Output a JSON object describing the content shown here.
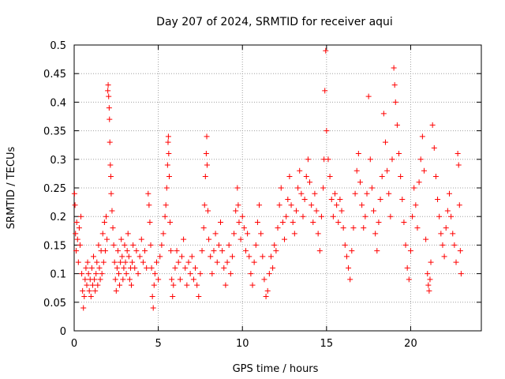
{
  "chart_data": {
    "type": "scatter",
    "title": "Day 207 of 2024, SRMTID for receiver aqui",
    "xlabel": "GPS time / hours",
    "ylabel": "SRMTID / TECUs",
    "xlim": [
      0,
      24.2
    ],
    "ylim": [
      0,
      0.5
    ],
    "x_ticks": [
      0,
      5,
      10,
      15,
      20
    ],
    "x_tick_labels": [
      "0",
      "5",
      "10",
      "15",
      "20"
    ],
    "y_ticks": [
      0,
      0.05,
      0.1,
      0.15,
      0.2,
      0.25,
      0.3,
      0.35,
      0.4,
      0.45,
      0.5
    ],
    "y_tick_labels": [
      "0",
      "0.05",
      "0.1",
      "0.15",
      "0.2",
      "0.25",
      "0.3",
      "0.35",
      "0.4",
      "0.45",
      "0.5"
    ],
    "grid": true,
    "marker": "+",
    "color": "#ff0000",
    "series": [
      {
        "name": "SRMTID",
        "points": [
          [
            0.02,
            0.24
          ],
          [
            0.05,
            0.22
          ],
          [
            0.08,
            0.17
          ],
          [
            0.12,
            0.14
          ],
          [
            0.15,
            0.19
          ],
          [
            0.2,
            0.16
          ],
          [
            0.25,
            0.12
          ],
          [
            0.3,
            0.18
          ],
          [
            0.35,
            0.15
          ],
          [
            0.4,
            0.2
          ],
          [
            0.45,
            0.1
          ],
          [
            0.5,
            0.07
          ],
          [
            0.55,
            0.04
          ],
          [
            0.6,
            0.06
          ],
          [
            0.65,
            0.09
          ],
          [
            0.7,
            0.11
          ],
          [
            0.75,
            0.08
          ],
          [
            0.8,
            0.12
          ],
          [
            0.85,
            0.1
          ],
          [
            0.9,
            0.07
          ],
          [
            0.95,
            0.09
          ],
          [
            1.0,
            0.06
          ],
          [
            1.05,
            0.11
          ],
          [
            1.1,
            0.08
          ],
          [
            1.15,
            0.13
          ],
          [
            1.2,
            0.09
          ],
          [
            1.25,
            0.07
          ],
          [
            1.3,
            0.1
          ],
          [
            1.35,
            0.12
          ],
          [
            1.4,
            0.08
          ],
          [
            1.45,
            0.15
          ],
          [
            1.5,
            0.11
          ],
          [
            1.55,
            0.09
          ],
          [
            1.6,
            0.14
          ],
          [
            1.65,
            0.1
          ],
          [
            1.7,
            0.17
          ],
          [
            1.75,
            0.12
          ],
          [
            1.8,
            0.19
          ],
          [
            1.85,
            0.14
          ],
          [
            1.9,
            0.2
          ],
          [
            1.95,
            0.16
          ],
          [
            2.0,
            0.42
          ],
          [
            2.02,
            0.43
          ],
          [
            2.05,
            0.41
          ],
          [
            2.08,
            0.39
          ],
          [
            2.1,
            0.37
          ],
          [
            2.12,
            0.33
          ],
          [
            2.15,
            0.29
          ],
          [
            2.18,
            0.27
          ],
          [
            2.2,
            0.24
          ],
          [
            2.25,
            0.21
          ],
          [
            2.3,
            0.18
          ],
          [
            2.35,
            0.15
          ],
          [
            2.4,
            0.12
          ],
          [
            2.45,
            0.09
          ],
          [
            2.5,
            0.07
          ],
          [
            2.55,
            0.11
          ],
          [
            2.6,
            0.14
          ],
          [
            2.65,
            0.1
          ],
          [
            2.7,
            0.08
          ],
          [
            2.75,
            0.12
          ],
          [
            2.8,
            0.16
          ],
          [
            2.85,
            0.13
          ],
          [
            2.9,
            0.09
          ],
          [
            2.95,
            0.11
          ],
          [
            3.0,
            0.15
          ],
          [
            3.05,
            0.12
          ],
          [
            3.1,
            0.1
          ],
          [
            3.15,
            0.14
          ],
          [
            3.2,
            0.17
          ],
          [
            3.25,
            0.13
          ],
          [
            3.3,
            0.09
          ],
          [
            3.35,
            0.11
          ],
          [
            3.4,
            0.08
          ],
          [
            3.45,
            0.12
          ],
          [
            3.5,
            0.15
          ],
          [
            3.6,
            0.11
          ],
          [
            3.7,
            0.14
          ],
          [
            3.8,
            0.1
          ],
          [
            3.9,
            0.13
          ],
          [
            4.0,
            0.16
          ],
          [
            4.1,
            0.12
          ],
          [
            4.2,
            0.14
          ],
          [
            4.3,
            0.11
          ],
          [
            4.4,
            0.24
          ],
          [
            4.45,
            0.22
          ],
          [
            4.5,
            0.19
          ],
          [
            4.55,
            0.15
          ],
          [
            4.6,
            0.11
          ],
          [
            4.65,
            0.06
          ],
          [
            4.7,
            0.04
          ],
          [
            4.75,
            0.08
          ],
          [
            4.8,
            0.1
          ],
          [
            4.9,
            0.12
          ],
          [
            5.0,
            0.09
          ],
          [
            5.1,
            0.13
          ],
          [
            5.2,
            0.15
          ],
          [
            5.3,
            0.17
          ],
          [
            5.4,
            0.2
          ],
          [
            5.45,
            0.22
          ],
          [
            5.5,
            0.25
          ],
          [
            5.55,
            0.29
          ],
          [
            5.58,
            0.33
          ],
          [
            5.6,
            0.34
          ],
          [
            5.62,
            0.31
          ],
          [
            5.65,
            0.27
          ],
          [
            5.7,
            0.19
          ],
          [
            5.75,
            0.14
          ],
          [
            5.8,
            0.09
          ],
          [
            5.85,
            0.06
          ],
          [
            5.9,
            0.08
          ],
          [
            6.0,
            0.11
          ],
          [
            6.1,
            0.14
          ],
          [
            6.2,
            0.12
          ],
          [
            6.3,
            0.09
          ],
          [
            6.4,
            0.13
          ],
          [
            6.5,
            0.16
          ],
          [
            6.6,
            0.11
          ],
          [
            6.7,
            0.08
          ],
          [
            6.8,
            0.12
          ],
          [
            6.9,
            0.1
          ],
          [
            7.0,
            0.13
          ],
          [
            7.1,
            0.09
          ],
          [
            7.2,
            0.11
          ],
          [
            7.3,
            0.08
          ],
          [
            7.4,
            0.06
          ],
          [
            7.5,
            0.1
          ],
          [
            7.6,
            0.14
          ],
          [
            7.7,
            0.18
          ],
          [
            7.75,
            0.22
          ],
          [
            7.8,
            0.27
          ],
          [
            7.85,
            0.31
          ],
          [
            7.88,
            0.34
          ],
          [
            7.9,
            0.29
          ],
          [
            7.95,
            0.21
          ],
          [
            8.0,
            0.16
          ],
          [
            8.1,
            0.13
          ],
          [
            8.2,
            0.1
          ],
          [
            8.3,
            0.14
          ],
          [
            8.4,
            0.17
          ],
          [
            8.5,
            0.12
          ],
          [
            8.6,
            0.15
          ],
          [
            8.7,
            0.19
          ],
          [
            8.8,
            0.14
          ],
          [
            8.9,
            0.11
          ],
          [
            9.0,
            0.08
          ],
          [
            9.1,
            0.12
          ],
          [
            9.2,
            0.15
          ],
          [
            9.3,
            0.1
          ],
          [
            9.4,
            0.13
          ],
          [
            9.5,
            0.17
          ],
          [
            9.6,
            0.21
          ],
          [
            9.7,
            0.25
          ],
          [
            9.75,
            0.22
          ],
          [
            9.8,
            0.19
          ],
          [
            9.9,
            0.16
          ],
          [
            10.0,
            0.2
          ],
          [
            10.1,
            0.18
          ],
          [
            10.2,
            0.14
          ],
          [
            10.3,
            0.17
          ],
          [
            10.4,
            0.13
          ],
          [
            10.5,
            0.1
          ],
          [
            10.6,
            0.08
          ],
          [
            10.7,
            0.12
          ],
          [
            10.8,
            0.15
          ],
          [
            10.9,
            0.19
          ],
          [
            11.0,
            0.22
          ],
          [
            11.1,
            0.17
          ],
          [
            11.2,
            0.13
          ],
          [
            11.3,
            0.09
          ],
          [
            11.4,
            0.06
          ],
          [
            11.5,
            0.07
          ],
          [
            11.6,
            0.1
          ],
          [
            11.7,
            0.13
          ],
          [
            11.8,
            0.11
          ],
          [
            11.9,
            0.15
          ],
          [
            12.0,
            0.14
          ],
          [
            12.1,
            0.18
          ],
          [
            12.2,
            0.22
          ],
          [
            12.3,
            0.25
          ],
          [
            12.4,
            0.19
          ],
          [
            12.5,
            0.16
          ],
          [
            12.6,
            0.2
          ],
          [
            12.7,
            0.23
          ],
          [
            12.8,
            0.27
          ],
          [
            12.9,
            0.22
          ],
          [
            13.0,
            0.19
          ],
          [
            13.1,
            0.17
          ],
          [
            13.2,
            0.21
          ],
          [
            13.3,
            0.25
          ],
          [
            13.4,
            0.28
          ],
          [
            13.5,
            0.24
          ],
          [
            13.6,
            0.2
          ],
          [
            13.7,
            0.23
          ],
          [
            13.8,
            0.27
          ],
          [
            13.9,
            0.3
          ],
          [
            14.0,
            0.26
          ],
          [
            14.1,
            0.22
          ],
          [
            14.2,
            0.19
          ],
          [
            14.3,
            0.24
          ],
          [
            14.4,
            0.21
          ],
          [
            14.5,
            0.17
          ],
          [
            14.6,
            0.14
          ],
          [
            14.7,
            0.2
          ],
          [
            14.8,
            0.25
          ],
          [
            14.85,
            0.3
          ],
          [
            14.9,
            0.42
          ],
          [
            14.95,
            0.49
          ],
          [
            15.0,
            0.35
          ],
          [
            15.1,
            0.3
          ],
          [
            15.2,
            0.27
          ],
          [
            15.3,
            0.23
          ],
          [
            15.4,
            0.2
          ],
          [
            15.5,
            0.24
          ],
          [
            15.6,
            0.22
          ],
          [
            15.7,
            0.19
          ],
          [
            15.8,
            0.23
          ],
          [
            15.9,
            0.21
          ],
          [
            16.0,
            0.18
          ],
          [
            16.1,
            0.15
          ],
          [
            16.2,
            0.13
          ],
          [
            16.3,
            0.11
          ],
          [
            16.4,
            0.09
          ],
          [
            16.5,
            0.14
          ],
          [
            16.6,
            0.18
          ],
          [
            16.7,
            0.24
          ],
          [
            16.8,
            0.28
          ],
          [
            16.9,
            0.31
          ],
          [
            17.0,
            0.26
          ],
          [
            17.1,
            0.22
          ],
          [
            17.2,
            0.18
          ],
          [
            17.3,
            0.2
          ],
          [
            17.4,
            0.24
          ],
          [
            17.5,
            0.41
          ],
          [
            17.6,
            0.3
          ],
          [
            17.7,
            0.25
          ],
          [
            17.8,
            0.21
          ],
          [
            17.9,
            0.17
          ],
          [
            18.0,
            0.14
          ],
          [
            18.1,
            0.19
          ],
          [
            18.2,
            0.23
          ],
          [
            18.3,
            0.27
          ],
          [
            18.4,
            0.38
          ],
          [
            18.5,
            0.33
          ],
          [
            18.6,
            0.28
          ],
          [
            18.7,
            0.24
          ],
          [
            18.8,
            0.2
          ],
          [
            18.9,
            0.3
          ],
          [
            19.0,
            0.46
          ],
          [
            19.05,
            0.43
          ],
          [
            19.1,
            0.4
          ],
          [
            19.2,
            0.36
          ],
          [
            19.3,
            0.31
          ],
          [
            19.4,
            0.27
          ],
          [
            19.5,
            0.23
          ],
          [
            19.6,
            0.19
          ],
          [
            19.7,
            0.15
          ],
          [
            19.8,
            0.11
          ],
          [
            19.9,
            0.09
          ],
          [
            20.0,
            0.14
          ],
          [
            20.1,
            0.2
          ],
          [
            20.2,
            0.25
          ],
          [
            20.3,
            0.22
          ],
          [
            20.4,
            0.18
          ],
          [
            20.5,
            0.26
          ],
          [
            20.6,
            0.3
          ],
          [
            20.7,
            0.34
          ],
          [
            20.8,
            0.28
          ],
          [
            20.9,
            0.16
          ],
          [
            21.0,
            0.1
          ],
          [
            21.05,
            0.08
          ],
          [
            21.1,
            0.07
          ],
          [
            21.15,
            0.09
          ],
          [
            21.2,
            0.12
          ],
          [
            21.3,
            0.36
          ],
          [
            21.4,
            0.32
          ],
          [
            21.5,
            0.27
          ],
          [
            21.6,
            0.23
          ],
          [
            21.7,
            0.2
          ],
          [
            21.8,
            0.17
          ],
          [
            21.9,
            0.15
          ],
          [
            22.0,
            0.13
          ],
          [
            22.1,
            0.18
          ],
          [
            22.2,
            0.21
          ],
          [
            22.3,
            0.24
          ],
          [
            22.4,
            0.2
          ],
          [
            22.5,
            0.17
          ],
          [
            22.6,
            0.15
          ],
          [
            22.7,
            0.12
          ],
          [
            22.8,
            0.31
          ],
          [
            22.85,
            0.29
          ],
          [
            22.9,
            0.22
          ],
          [
            22.95,
            0.14
          ],
          [
            23.0,
            0.1
          ]
        ]
      }
    ]
  }
}
